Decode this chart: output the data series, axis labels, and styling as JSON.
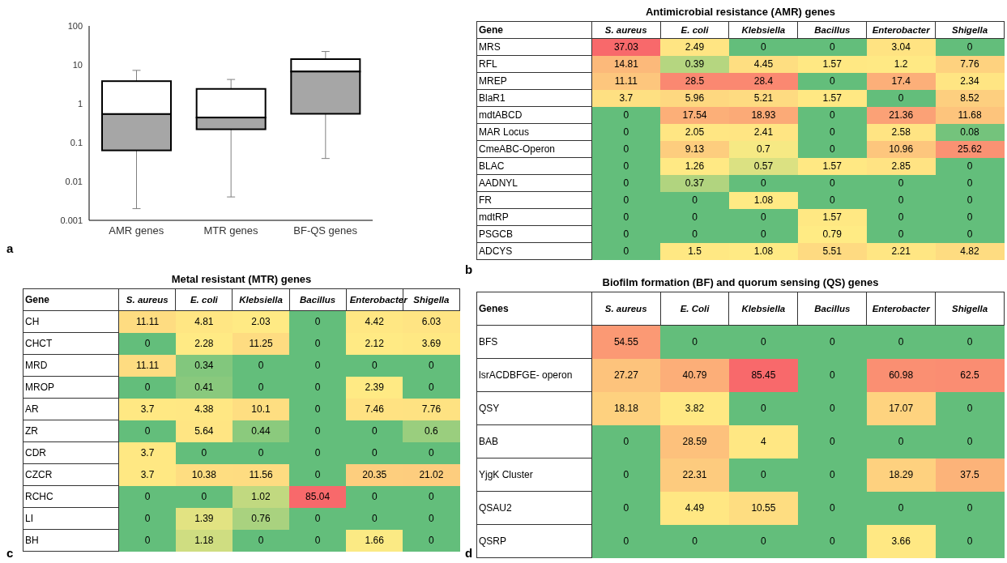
{
  "chart_data": [
    {
      "type": "box",
      "categories": [
        "AMR genes",
        "MTR genes",
        "BF-QS genes"
      ],
      "log": true,
      "ylim": [
        0.001,
        100
      ],
      "yticks": [
        0.001,
        0.01,
        0.1,
        1,
        10,
        100
      ],
      "color": "#a6a6a6",
      "annotations": [
        "a"
      ],
      "boxes": [
        {
          "low": 0.002,
          "q1": 0.063,
          "median": 0.54,
          "q3": 3.8,
          "high": 7.2
        },
        {
          "low": 0.004,
          "q1": 0.22,
          "median": 0.44,
          "q3": 2.4,
          "high": 4.2
        },
        {
          "low": 0.039,
          "q1": 0.55,
          "median": 6.7,
          "q3": 14,
          "high": 22
        }
      ]
    },
    {
      "type": "heatmap",
      "title": "Antimicrobial resistance (AMR) genes",
      "ylabel": "Gene",
      "annotations": [
        "b"
      ],
      "data_labels": true,
      "categories": [
        "S. aureus",
        "E. coli",
        "Klebsiella",
        "Bacillus",
        "Enterobacter",
        "Shigella"
      ],
      "y_categories": [
        "MRS",
        "RFL",
        "MREP",
        "BlaR1",
        "mdtABCD",
        "MAR Locus",
        "CmeABC-Operon",
        "BLAC",
        "AADNYL",
        "FR",
        "mdtRP",
        "PSGCB",
        "ADCYS"
      ],
      "cells": [
        [
          37.03,
          2.49,
          0,
          0,
          3.04,
          0
        ],
        [
          14.81,
          0.39,
          4.45,
          1.57,
          1.2,
          7.76
        ],
        [
          11.11,
          28.5,
          28.4,
          0,
          17.4,
          2.34
        ],
        [
          3.7,
          5.96,
          5.21,
          1.57,
          0,
          8.52
        ],
        [
          0,
          17.54,
          18.93,
          0,
          21.36,
          11.68
        ],
        [
          0,
          2.05,
          2.41,
          0,
          2.58,
          0.08
        ],
        [
          0,
          9.13,
          0.7,
          0,
          10.96,
          25.62
        ],
        [
          0,
          1.26,
          0.57,
          1.57,
          2.85,
          0
        ],
        [
          0,
          0.37,
          0,
          0,
          0,
          0
        ],
        [
          0,
          0,
          1.08,
          0,
          0,
          0
        ],
        [
          0,
          0,
          0,
          1.57,
          0,
          0
        ],
        [
          0,
          0,
          0,
          0.79,
          0,
          0
        ],
        [
          0,
          1.5,
          1.08,
          5.51,
          2.21,
          4.82
        ]
      ]
    },
    {
      "type": "heatmap",
      "title": "Metal resistant (MTR) genes",
      "ylabel": "Gene",
      "annotations": [
        "c"
      ],
      "data_labels": true,
      "categories": [
        "S. aureus",
        "E. coli",
        "Klebsiella",
        "Bacillus",
        "Enterobacter",
        "Shigella"
      ],
      "y_categories": [
        "CH",
        "CHCT",
        "MRD",
        "MROP",
        "AR",
        "ZR",
        "CDR",
        "CZCR",
        "RCHC",
        "LI",
        "BH"
      ],
      "cells": [
        [
          11.11,
          4.81,
          2.03,
          0,
          4.42,
          6.03
        ],
        [
          0,
          2.28,
          11.25,
          0,
          2.12,
          3.69
        ],
        [
          11.11,
          0.34,
          0,
          0,
          0,
          0
        ],
        [
          0,
          0.41,
          0,
          0,
          2.39,
          0
        ],
        [
          3.7,
          4.38,
          10.1,
          0,
          7.46,
          7.76
        ],
        [
          0,
          5.64,
          0.44,
          0,
          0,
          0.6
        ],
        [
          3.7,
          0,
          0,
          0,
          0,
          0
        ],
        [
          3.7,
          10.38,
          11.56,
          0,
          20.35,
          21.02
        ],
        [
          0,
          0,
          1.02,
          85.04,
          0,
          0
        ],
        [
          0,
          1.39,
          0.76,
          0,
          0,
          0
        ],
        [
          0,
          1.18,
          0,
          0,
          1.66,
          0
        ]
      ]
    },
    {
      "type": "heatmap",
      "title": "Biofilm formation (BF) and quorum sensing (QS) genes",
      "ylabel": "Genes",
      "annotations": [
        "d"
      ],
      "data_labels": true,
      "categories": [
        "S. aureus",
        "E. Coli",
        "Klebsiella",
        "Bacillus",
        "Enterobacter",
        "Shigella"
      ],
      "y_categories": [
        "BFS",
        "lsrACDBFGE- operon",
        "QSY",
        "BAB",
        "YjgK Cluster",
        "QSAU2",
        "QSRP"
      ],
      "cells": [
        [
          54.55,
          0,
          0,
          0,
          0,
          0
        ],
        [
          27.27,
          40.79,
          85.45,
          0,
          60.98,
          62.5
        ],
        [
          18.18,
          3.82,
          0,
          0,
          17.07,
          0
        ],
        [
          0,
          28.59,
          4,
          0,
          0,
          0
        ],
        [
          0,
          22.31,
          0,
          0,
          18.29,
          37.5
        ],
        [
          0,
          4.49,
          10.55,
          0,
          0,
          0
        ],
        [
          0,
          0,
          0,
          0,
          3.66,
          0
        ]
      ]
    }
  ]
}
